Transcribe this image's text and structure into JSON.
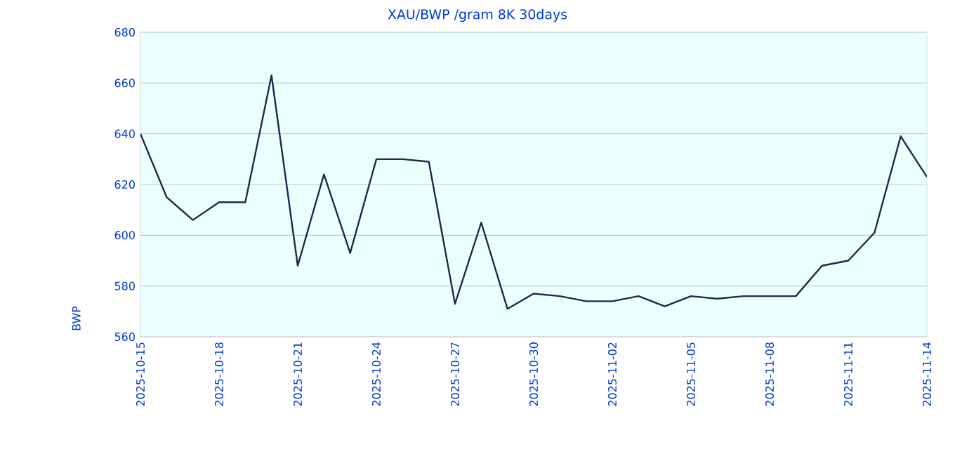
{
  "chart_data": {
    "type": "line",
    "title": "XAU/BWP /gram 8K 30days",
    "ylabel": "BWP",
    "x": [
      "2025-10-15",
      "2025-10-16",
      "2025-10-17",
      "2025-10-18",
      "2025-10-19",
      "2025-10-20",
      "2025-10-21",
      "2025-10-22",
      "2025-10-23",
      "2025-10-24",
      "2025-10-25",
      "2025-10-26",
      "2025-10-27",
      "2025-10-28",
      "2025-10-29",
      "2025-10-30",
      "2025-10-31",
      "2025-11-01",
      "2025-11-02",
      "2025-11-03",
      "2025-11-04",
      "2025-11-05",
      "2025-11-06",
      "2025-11-07",
      "2025-11-08",
      "2025-11-09",
      "2025-11-10",
      "2025-11-11",
      "2025-11-12",
      "2025-11-13",
      "2025-11-14"
    ],
    "series": [
      {
        "color": "#1a2b4a",
        "values": [
          640,
          615,
          606,
          613,
          613,
          663,
          588,
          624,
          593,
          630,
          630,
          629,
          573,
          605,
          571,
          577,
          576,
          574,
          574,
          576,
          572,
          576,
          575,
          576,
          576,
          576,
          588,
          590,
          601,
          639,
          623
        ]
      }
    ],
    "xlim": [
      "2025-10-15",
      "2025-11-14"
    ],
    "xticks": [
      "2025-10-15",
      "2025-10-18",
      "2025-10-21",
      "2025-10-24",
      "2025-10-27",
      "2025-10-30",
      "2025-11-02",
      "2025-11-05",
      "2025-11-08",
      "2025-11-11",
      "2025-11-14"
    ],
    "ylim": [
      560,
      680
    ],
    "yticks": [
      560,
      580,
      600,
      620,
      640,
      660,
      680
    ],
    "grid": "y",
    "marker": "none",
    "line_style": "solid"
  }
}
